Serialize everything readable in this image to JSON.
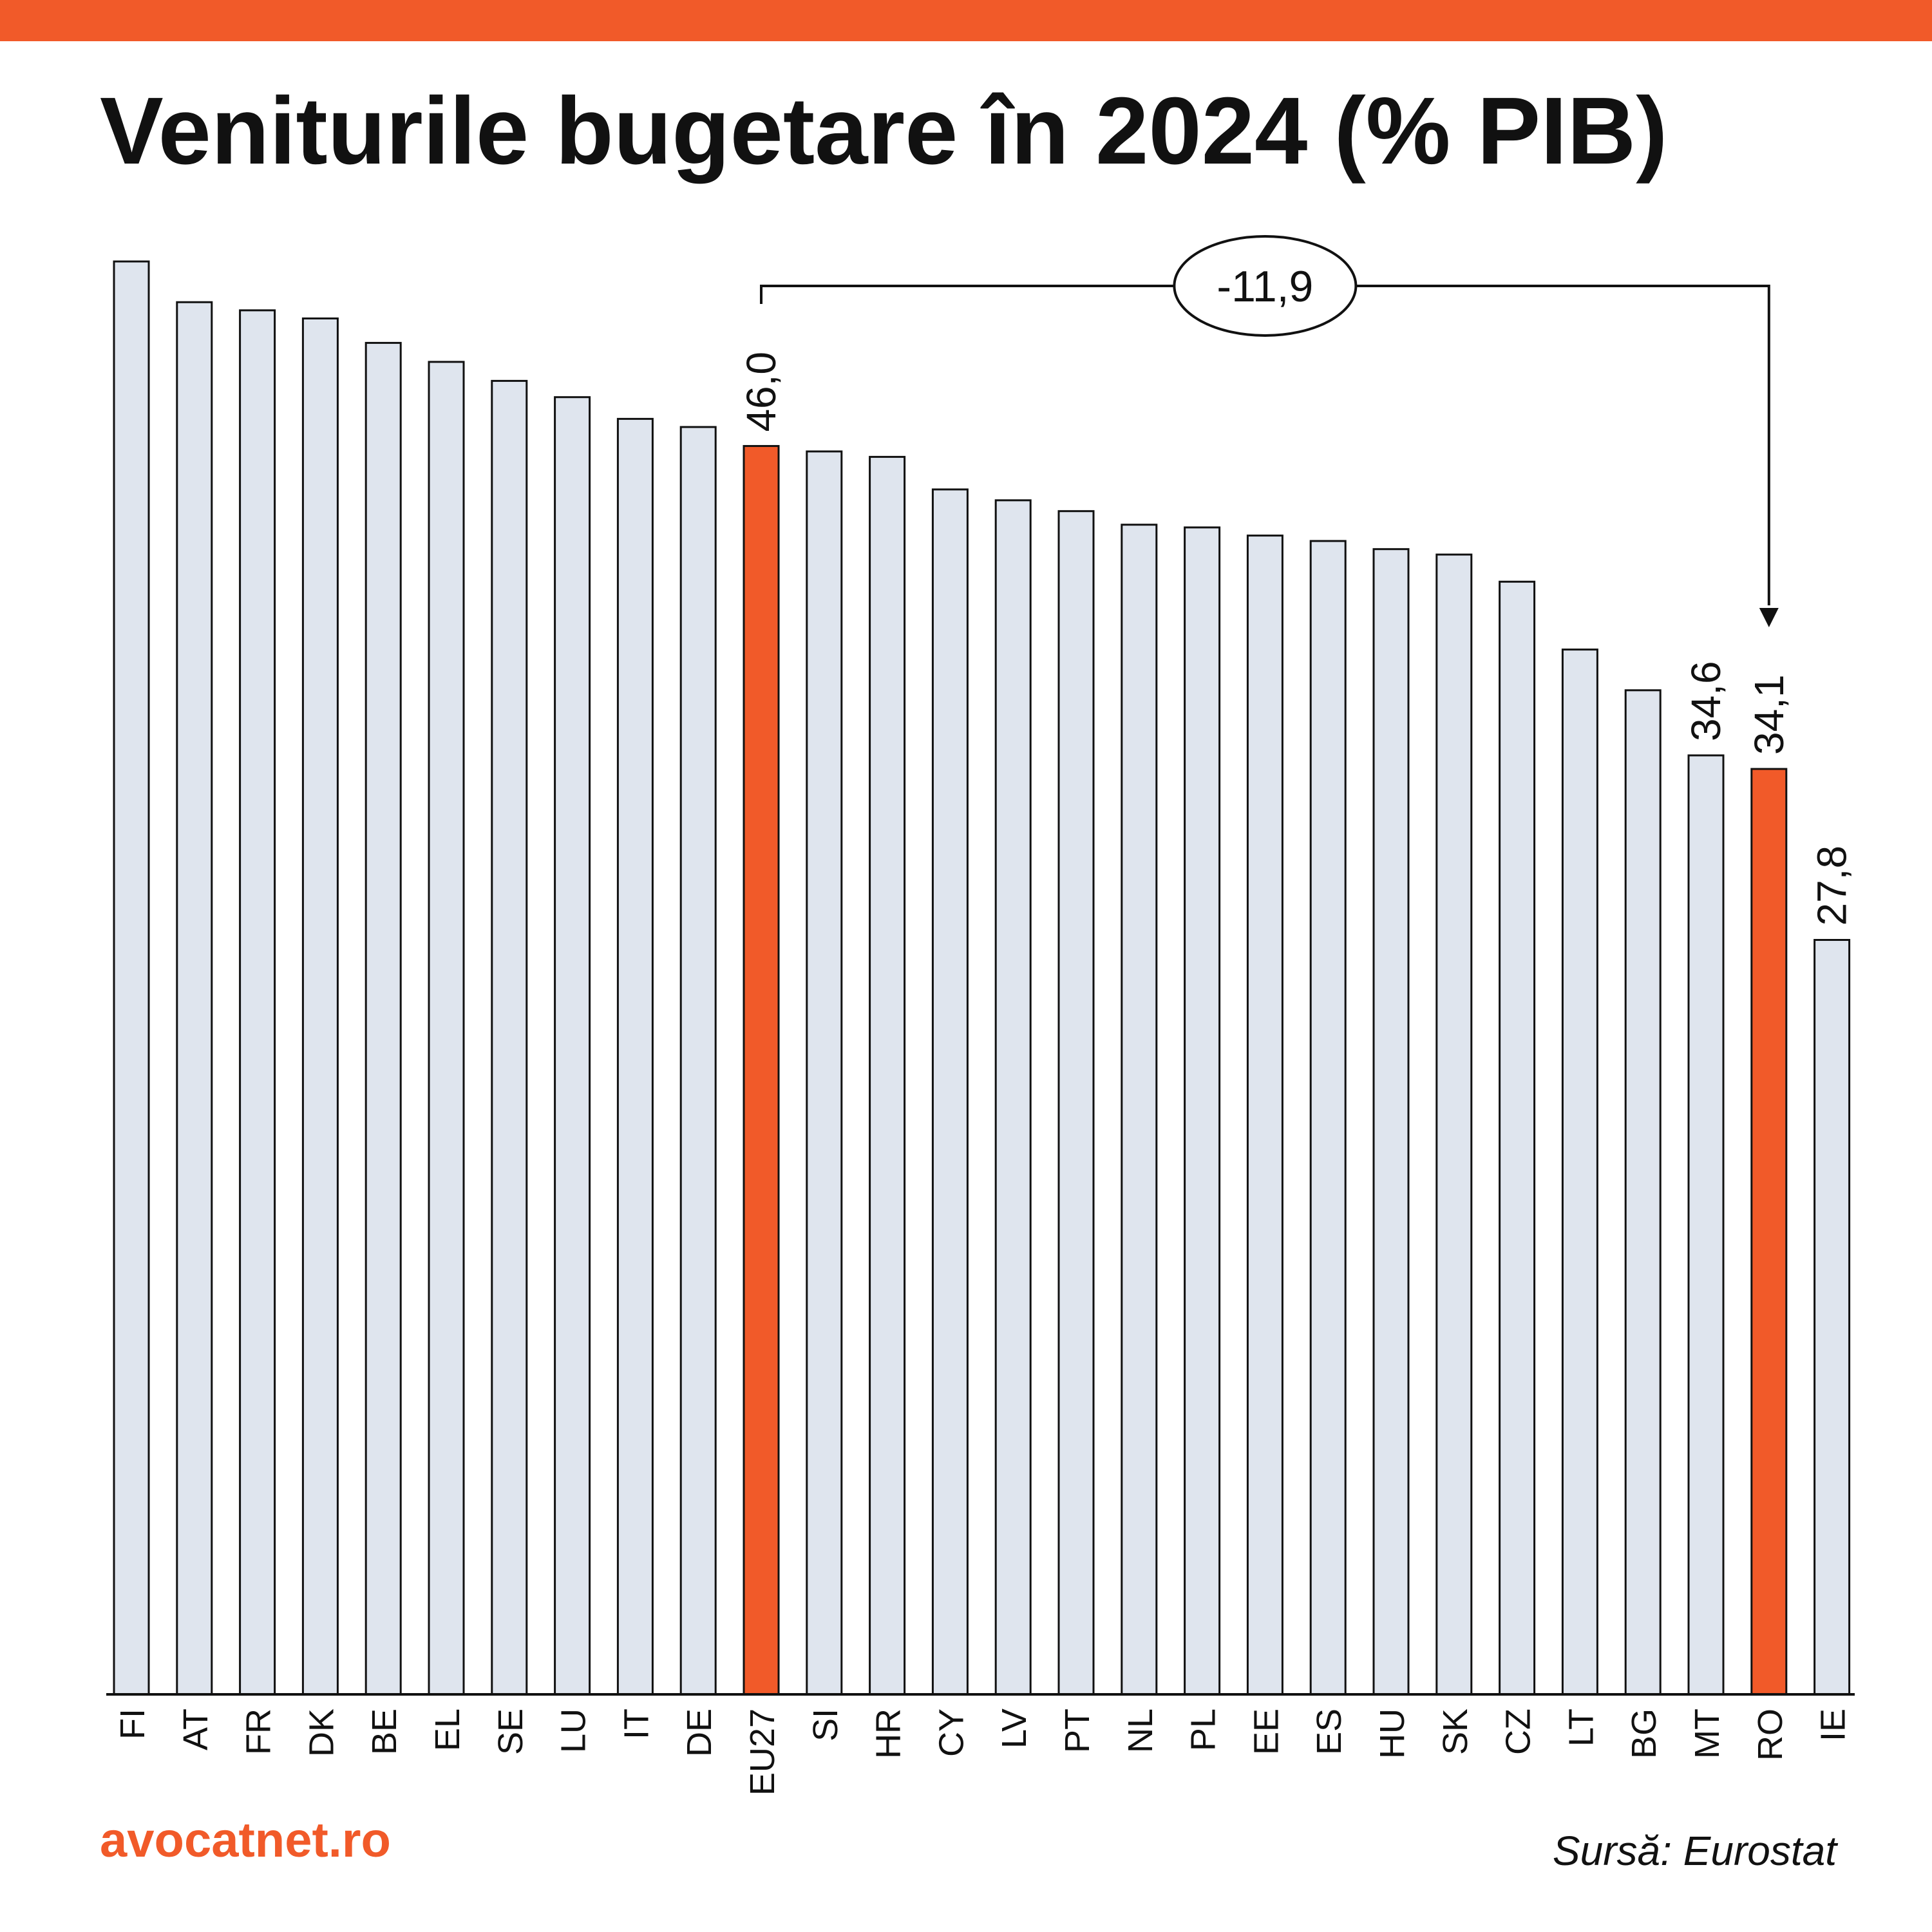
{
  "header": {
    "accent_color": "#f15a29",
    "title": "Veniturile bugetare în 2024 (% PIB)"
  },
  "chart_data": {
    "type": "bar",
    "title": "Veniturile bugetare în 2024 (% PIB)",
    "categories": [
      "FI",
      "AT",
      "FR",
      "DK",
      "BE",
      "EL",
      "SE",
      "LU",
      "IT",
      "DE",
      "EU27",
      "SI",
      "HR",
      "CY",
      "LV",
      "PT",
      "NL",
      "PL",
      "EE",
      "ES",
      "HU",
      "SK",
      "CZ",
      "LT",
      "BG",
      "MT",
      "RO",
      "IE"
    ],
    "values": [
      52.8,
      51.3,
      51.0,
      50.7,
      49.8,
      49.1,
      48.4,
      47.8,
      47.0,
      46.7,
      46.0,
      45.8,
      45.6,
      44.4,
      44.0,
      43.6,
      43.1,
      43.0,
      42.7,
      42.5,
      42.2,
      42.0,
      41.0,
      38.5,
      37.0,
      34.6,
      34.1,
      27.8
    ],
    "highlighted": [
      "EU27",
      "RO"
    ],
    "data_labels": [
      {
        "category": "EU27",
        "text": "46,0"
      },
      {
        "category": "MT",
        "text": "34,6"
      },
      {
        "category": "RO",
        "text": "34,1"
      },
      {
        "category": "IE",
        "text": "27,8"
      }
    ],
    "difference_annotation": {
      "from": "EU27",
      "to": "RO",
      "text": "-11,9"
    },
    "xlabel": "",
    "ylabel": "",
    "ylim": [
      0,
      52.8
    ],
    "grid": false,
    "legend": "none",
    "colors": {
      "bar": "#dfe5ee",
      "highlight": "#f15a29",
      "outline": "#111111"
    }
  },
  "footer": {
    "brand": "avocatnet.ro",
    "brand_color": "#f15a29",
    "source": "Sursă: Eurostat"
  }
}
